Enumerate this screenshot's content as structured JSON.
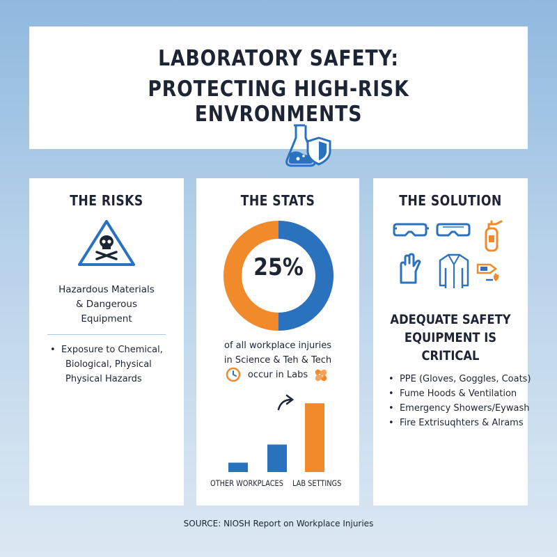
{
  "header": {
    "title_line1": "LABORATORY SAFETY:",
    "title_line2": "PROTECTING HIGH-RISK ENVRONMENTS",
    "icon": "flask-shield-icon"
  },
  "colors": {
    "blue": "#2a72be",
    "orange": "#f08a2b",
    "text": "#1d2535"
  },
  "risks": {
    "title": "THE RISKS",
    "icon": "skull-warning-icon",
    "description": [
      "Hazardous Materials",
      "& Dangerous",
      "Equipment"
    ],
    "bullet_line1": "Exposure to Chemical,",
    "bullet_line2": "Biological, Physical",
    "bullet_line3": "Physical Hazards"
  },
  "stats": {
    "title": "THE STATS",
    "donut_label": "25%",
    "text": [
      "of all workplace injuries",
      "in Science & Teh & Tech",
      "occur in Labs"
    ],
    "icons": [
      "clock-icon",
      "bandage-icon"
    ]
  },
  "chart_data": {
    "type": "bar",
    "categories": [
      "OTHER WORKPLACES",
      "LAB SETTINGS"
    ],
    "donut": {
      "value": 25
    },
    "bars_relative": [
      0.13,
      0.38,
      0.95
    ]
  },
  "solution": {
    "title": "THE SOLUTION",
    "icons": [
      "goggles-icon",
      "goggles-icon",
      "fire-extinguisher-icon",
      "gloves-icon",
      "lab-coat-icon",
      "fire-sign-icon"
    ],
    "heading": [
      "ADEQUATE SAFETY",
      "EQUIPMENT IS",
      "CRITICAL"
    ],
    "list": [
      "PPE (Gloves, Goggles, Coats)",
      "Fume Hoods & Ventilation",
      "Emergency Showers/Eywash",
      "Fire Extrisuqhters & Alrams"
    ]
  },
  "source": "SOURCE: NIOSH Report on Workplace Injuries"
}
